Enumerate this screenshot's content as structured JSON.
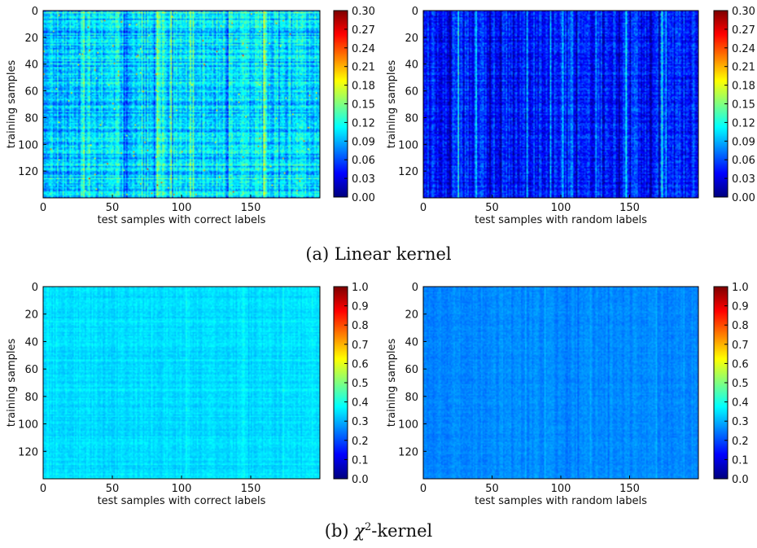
{
  "colormap_name": "jet",
  "captions": {
    "a": "(a) Linear kernel",
    "b_prefix": "(b) ",
    "b_symbol": "χ",
    "b_sup": "2",
    "b_suffix": "-kernel"
  },
  "chart_data": [
    {
      "type": "heatmap",
      "panel": "linear-correct",
      "xlabel": "test samples with correct labels",
      "ylabel": "training samples",
      "xlim": [
        0,
        200
      ],
      "ylim": [
        140,
        0
      ],
      "xticks": [
        "0",
        "50",
        "100",
        "150"
      ],
      "yticks": [
        "0",
        "20",
        "40",
        "60",
        "80",
        "100",
        "120"
      ],
      "colorbar": {
        "min": 0.0,
        "max": 0.3,
        "ticks": [
          "0.30",
          "0.27",
          "0.24",
          "0.21",
          "0.18",
          "0.15",
          "0.12",
          "0.09",
          "0.06",
          "0.03",
          "0.00"
        ]
      },
      "grid": false,
      "mean_value": 0.1
    },
    {
      "type": "heatmap",
      "panel": "linear-random",
      "xlabel": "test samples with random labels",
      "ylabel": "training samples",
      "xlim": [
        0,
        200
      ],
      "ylim": [
        140,
        0
      ],
      "xticks": [
        "0",
        "50",
        "100",
        "150"
      ],
      "yticks": [
        "0",
        "20",
        "40",
        "60",
        "80",
        "100",
        "120"
      ],
      "colorbar": {
        "min": 0.0,
        "max": 0.3,
        "ticks": [
          "0.30",
          "0.27",
          "0.24",
          "0.21",
          "0.18",
          "0.15",
          "0.12",
          "0.09",
          "0.06",
          "0.03",
          "0.00"
        ]
      },
      "grid": false,
      "mean_value": 0.045
    },
    {
      "type": "heatmap",
      "panel": "chi2-correct",
      "xlabel": "test samples with correct labels",
      "ylabel": "training samples",
      "xlim": [
        0,
        200
      ],
      "ylim": [
        140,
        0
      ],
      "xticks": [
        "0",
        "50",
        "100",
        "150"
      ],
      "yticks": [
        "0",
        "20",
        "40",
        "60",
        "80",
        "100",
        "120"
      ],
      "colorbar": {
        "min": 0.0,
        "max": 1.0,
        "ticks": [
          "1.0",
          "0.9",
          "0.8",
          "0.7",
          "0.6",
          "0.5",
          "0.4",
          "0.3",
          "0.2",
          "0.1",
          "0.0"
        ]
      },
      "grid": false,
      "mean_value": 0.34
    },
    {
      "type": "heatmap",
      "panel": "chi2-random",
      "xlabel": "test samples with random labels",
      "ylabel": "training samples",
      "xlim": [
        0,
        200
      ],
      "ylim": [
        140,
        0
      ],
      "xticks": [
        "0",
        "50",
        "100",
        "150"
      ],
      "yticks": [
        "0",
        "20",
        "40",
        "60",
        "80",
        "100",
        "120"
      ],
      "colorbar": {
        "min": 0.0,
        "max": 1.0,
        "ticks": [
          "1.0",
          "0.9",
          "0.8",
          "0.7",
          "0.6",
          "0.5",
          "0.4",
          "0.3",
          "0.2",
          "0.1",
          "0.0"
        ]
      },
      "grid": false,
      "mean_value": 0.26
    }
  ]
}
